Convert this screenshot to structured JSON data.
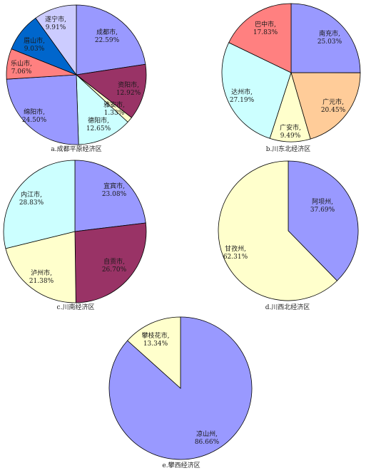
{
  "chart_data": [
    {
      "type": "pie",
      "caption": "a.成都平原经济区",
      "slices": [
        {
          "name": "成都市,",
          "pct_label": "22.59%",
          "value": 22.59,
          "color": "#9999ff"
        },
        {
          "name": "资阳市,",
          "pct_label": "12.92%",
          "value": 12.92,
          "color": "#993366"
        },
        {
          "name": "雅安市,",
          "pct_label": "1.33%",
          "value": 1.33,
          "color": "#ffffcc"
        },
        {
          "name": "德阳市,",
          "pct_label": "12.65%",
          "value": 12.65,
          "color": "#ccffff"
        },
        {
          "name": "绵阳市,",
          "pct_label": "24.50%",
          "value": 24.5,
          "color": "#9999ff"
        },
        {
          "name": "乐山市,",
          "pct_label": "7.06%",
          "value": 7.06,
          "color": "#ff8080"
        },
        {
          "name": "眉山市,",
          "pct_label": "9.03%",
          "value": 9.03,
          "color": "#0066cc"
        },
        {
          "name": "遂宁市,",
          "pct_label": "9.91%",
          "value": 9.91,
          "color": "#ccccff"
        }
      ]
    },
    {
      "type": "pie",
      "caption": "b.川东北经济区",
      "slices": [
        {
          "name": "南充市,",
          "pct_label": "25.03%",
          "value": 25.03,
          "color": "#9999ff"
        },
        {
          "name": "广元市,",
          "pct_label": "20.45%",
          "value": 20.45,
          "color": "#ffcc99"
        },
        {
          "name": "广安市,",
          "pct_label": "9.49%",
          "value": 9.49,
          "color": "#ffffcc"
        },
        {
          "name": "达州市,",
          "pct_label": "27.19%",
          "value": 27.19,
          "color": "#ccffff"
        },
        {
          "name": "巴中市,",
          "pct_label": "17.83%",
          "value": 17.83,
          "color": "#ff8080"
        }
      ]
    },
    {
      "type": "pie",
      "caption": "c.川南经济区",
      "slices": [
        {
          "name": "宜宾市,",
          "pct_label": "23.08%",
          "value": 23.08,
          "color": "#9999ff"
        },
        {
          "name": "自贡市,",
          "pct_label": "26.70%",
          "value": 26.7,
          "color": "#993366"
        },
        {
          "name": "泸州市,",
          "pct_label": "21.38%",
          "value": 21.38,
          "color": "#ffffcc"
        },
        {
          "name": "内江市,",
          "pct_label": "28.83%",
          "value": 28.83,
          "color": "#ccffff"
        }
      ]
    },
    {
      "type": "pie",
      "caption": "d.川西北经济区",
      "slices": [
        {
          "name": "阿坝州,",
          "pct_label": "37.69%",
          "value": 37.69,
          "color": "#9999ff"
        },
        {
          "name": "甘孜州,",
          "pct_label": "62.31%",
          "value": 62.31,
          "color": "#ffffcc"
        }
      ]
    },
    {
      "type": "pie",
      "caption": "e.攀西经济区",
      "slices": [
        {
          "name": "凉山州,",
          "pct_label": "86.66%",
          "value": 86.66,
          "color": "#9999ff"
        },
        {
          "name": "攀枝花市,",
          "pct_label": "13.34%",
          "value": 13.34,
          "color": "#ffffcc"
        }
      ]
    }
  ]
}
